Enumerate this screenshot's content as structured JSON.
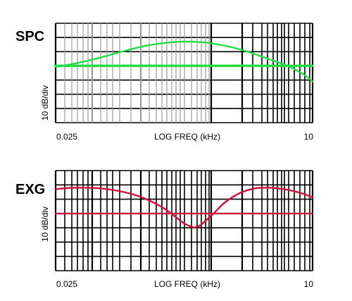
{
  "colors": {
    "spc_curve": "#22dd44",
    "exg_curve": "#d0103a",
    "grid_dark": "#000000",
    "grid_light": "#9a9a9a"
  },
  "chart_data": [
    {
      "type": "line",
      "panel_label": "SPC",
      "xlabel": "LOG FREQ (kHz)",
      "ylabel": "10 dB/div",
      "x_scale": "log",
      "xlim": [
        0.025,
        10
      ],
      "ylim": [
        -50,
        20
      ],
      "x_tick_labels": [
        "0.025",
        "10"
      ],
      "grid": true,
      "series": [
        {
          "role": "reference",
          "x": [
            0.025,
            10
          ],
          "y": [
            -10,
            -10
          ]
        },
        {
          "role": "response",
          "x": [
            0.025,
            0.035,
            0.05,
            0.08,
            0.12,
            0.2,
            0.3,
            0.45,
            0.6,
            0.8,
            1.0,
            1.5,
            2.0,
            3.0,
            4.0,
            5.0,
            6.0,
            7.0,
            8.5,
            10
          ],
          "y": [
            -10.7,
            -9.0,
            -6.8,
            -3.2,
            0.2,
            4.0,
            5.9,
            7.0,
            7.0,
            6.5,
            5.6,
            3.2,
            0.9,
            -3.2,
            -6.3,
            -8.7,
            -11.0,
            -13.4,
            -17.0,
            -21.0
          ]
        }
      ]
    },
    {
      "type": "line",
      "panel_label": "EXG",
      "xlabel": "LOG FREQ (kHz)",
      "ylabel": "10 dB/div",
      "x_scale": "log",
      "xlim": [
        0.025,
        10
      ],
      "ylim": [
        -50,
        20
      ],
      "x_tick_labels": [
        "0.025",
        "10"
      ],
      "grid": true,
      "series": [
        {
          "role": "reference",
          "x": [
            0.025,
            10
          ],
          "y": [
            -10,
            -10
          ]
        },
        {
          "role": "response",
          "x": [
            0.025,
            0.035,
            0.05,
            0.07,
            0.1,
            0.15,
            0.2,
            0.3,
            0.4,
            0.5,
            0.6,
            0.65,
            0.72,
            0.8,
            1.0,
            1.3,
            1.8,
            2.5,
            3.2,
            4.0,
            5.0,
            6.3,
            8.0,
            10
          ],
          "y": [
            7.0,
            7.9,
            8.0,
            7.6,
            6.2,
            3.5,
            0.5,
            -5.6,
            -11.8,
            -16.9,
            -19.4,
            -19.7,
            -18.6,
            -16.0,
            -9.8,
            -2.2,
            4.0,
            7.3,
            8.0,
            7.9,
            7.1,
            5.8,
            3.8,
            1.3
          ]
        }
      ]
    }
  ]
}
